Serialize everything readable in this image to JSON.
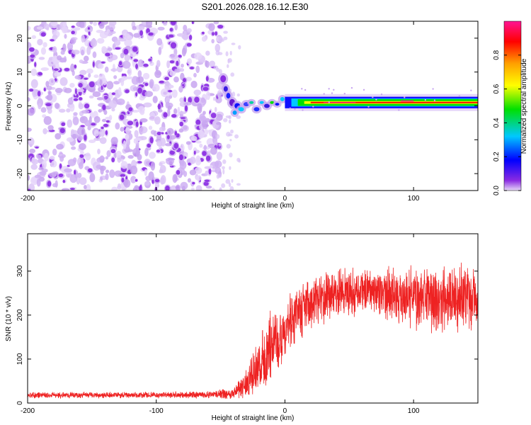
{
  "title": "S201.2026.028.16.12.E30",
  "chart_data": [
    {
      "type": "heatmap",
      "name": "spectrogram",
      "xlabel": "Height of straight line (km)",
      "ylabel": "Frequency (Hz)",
      "xlim": [
        -200,
        150
      ],
      "ylim": [
        -25,
        25
      ],
      "x_ticks": [
        -200,
        -100,
        0,
        100
      ],
      "x_tick_labels": [
        "-200",
        "-100",
        "0",
        "100"
      ],
      "y_ticks": [
        -20,
        -10,
        0,
        10,
        20
      ],
      "y_tick_labels": [
        "-20",
        "-10",
        "0",
        "10",
        "20"
      ],
      "noise_region_x": [
        -200,
        -50
      ],
      "signal_band_hz": [
        0,
        2
      ],
      "colorbar": {
        "label": "Normalized spectral amplitude",
        "range": [
          0,
          1
        ],
        "ticks": [
          0.0,
          0.2,
          0.4,
          0.6,
          0.8
        ],
        "tick_labels": [
          "0.0",
          "0.2",
          "0.4",
          "0.6",
          "0.8"
        ],
        "colors": [
          "#e8d8f8",
          "#8a2be2",
          "#0000ff",
          "#00c8ff",
          "#00e000",
          "#ffff00",
          "#ffa000",
          "#ff0000",
          "#ff1493"
        ]
      }
    },
    {
      "type": "line",
      "name": "snr",
      "xlabel": "Height of straight line (km)",
      "ylabel": "SNR (10 * v/v)",
      "xlim": [
        -200,
        150
      ],
      "ylim": [
        0,
        385
      ],
      "x_ticks": [
        -200,
        -100,
        0,
        100
      ],
      "x_tick_labels": [
        "-200",
        "-100",
        "0",
        "100"
      ],
      "y_ticks": [
        0,
        100,
        200,
        300
      ],
      "y_tick_labels": [
        "0",
        "100",
        "200",
        "300"
      ],
      "series_color": "#ee2222",
      "envelope": {
        "x": [
          -200,
          -150,
          -100,
          -60,
          -40,
          -30,
          -20,
          -10,
          0,
          10,
          20,
          40,
          60,
          80,
          100,
          120,
          150
        ],
        "baseline": [
          18,
          18,
          18,
          19,
          22,
          45,
          80,
          130,
          170,
          200,
          230,
          250,
          255,
          250,
          240,
          235,
          240
        ],
        "spread": [
          8,
          8,
          8,
          9,
          15,
          40,
          70,
          90,
          80,
          80,
          70,
          60,
          60,
          70,
          80,
          85,
          80
        ]
      }
    }
  ]
}
